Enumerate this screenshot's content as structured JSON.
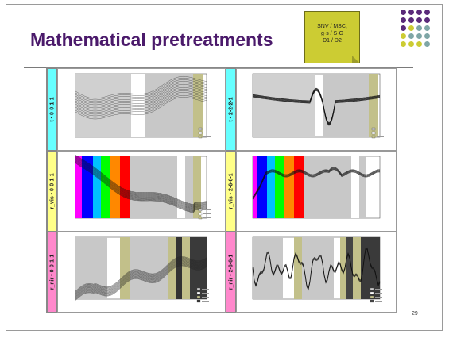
{
  "slide": {
    "title": "Mathematical pretreatments",
    "note_lines": [
      "SNV / MSC;",
      "g-s / S-G",
      "D1 / D2"
    ],
    "page_number": "29"
  },
  "colors": {
    "title": "#4b1a6b",
    "note_bg": "#cccc33",
    "label_cyan": "#66ffff",
    "label_yellow": "#ffff88",
    "label_pink": "#ff88cc",
    "dot_purple": "#5a2a7a",
    "dot_olive": "#cccc33",
    "dot_teal": "#7fa6a6"
  },
  "panels": [
    {
      "label": "t • 0-0-1-1",
      "label_color": "cyan"
    },
    {
      "label": "t • 2-2-2-1",
      "label_color": "cyan"
    },
    {
      "label": "r_vis • 0-0-1-1",
      "label_color": "yellow"
    },
    {
      "label": "r_vis • 2-6-6-1",
      "label_color": "yellow"
    },
    {
      "label": "r_nir • 0-0-1-1",
      "label_color": "pink"
    },
    {
      "label": "r_nir • 2-6-6-1",
      "label_color": "pink"
    }
  ]
}
